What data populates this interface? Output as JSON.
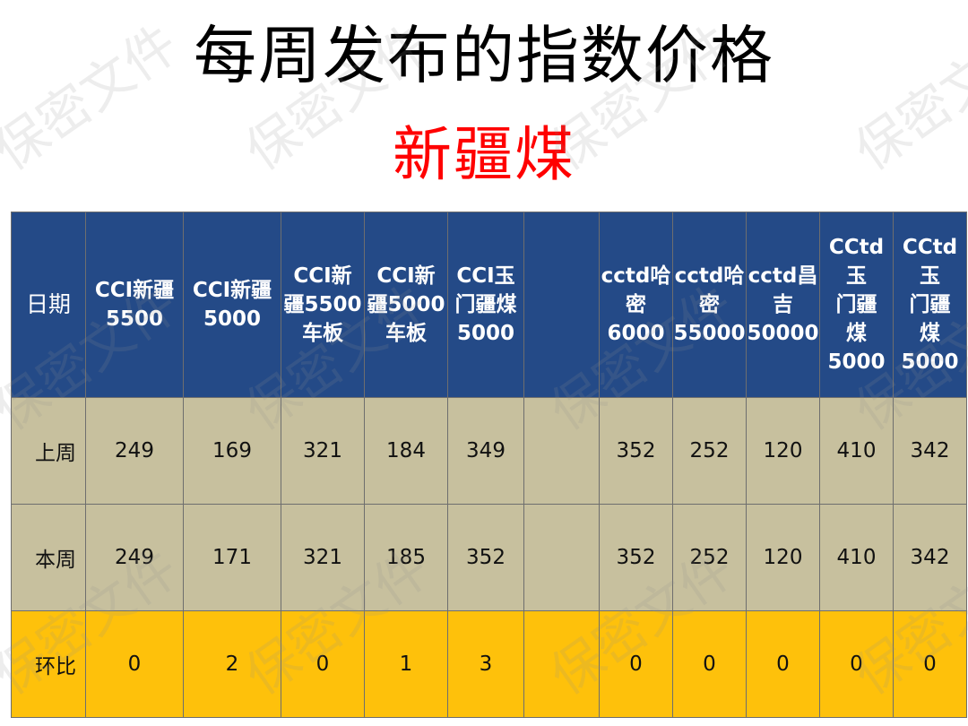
{
  "title": "每周发布的指数价格",
  "subtitle": "新疆煤",
  "watermark_text": "保密文件",
  "table": {
    "headers": [
      "日期",
      "CCI新疆\n5500",
      "CCI新疆\n5000",
      "CCI新\n疆5500\n车板",
      "CCI新\n疆5000\n车板",
      "CCI玉\n门疆煤\n5000",
      "",
      "cctd哈\n密\n6000",
      "cctd哈\n密\n55000",
      "cctd昌\n吉\n50000",
      "CCtd玉\n门疆\n煤\n5000",
      "CCtd玉\n门疆\n煤\n5000"
    ],
    "rows": [
      {
        "label": "上周",
        "cells": [
          "249",
          "169",
          "321",
          "184",
          "349",
          "",
          "352",
          "252",
          "120",
          "410",
          "342"
        ]
      },
      {
        "label": "本周",
        "cells": [
          "249",
          "171",
          "321",
          "185",
          "352",
          "",
          "352",
          "252",
          "120",
          "410",
          "342"
        ]
      },
      {
        "label": "环比",
        "cells": [
          "0",
          "2",
          "0",
          "1",
          "3",
          "",
          "0",
          "0",
          "0",
          "0",
          "0"
        ]
      }
    ]
  },
  "colors": {
    "header_bg": "#244a87",
    "row_bg": "#c7c09e",
    "change_row_bg": "#fec10b",
    "subtitle": "#ff0000"
  }
}
